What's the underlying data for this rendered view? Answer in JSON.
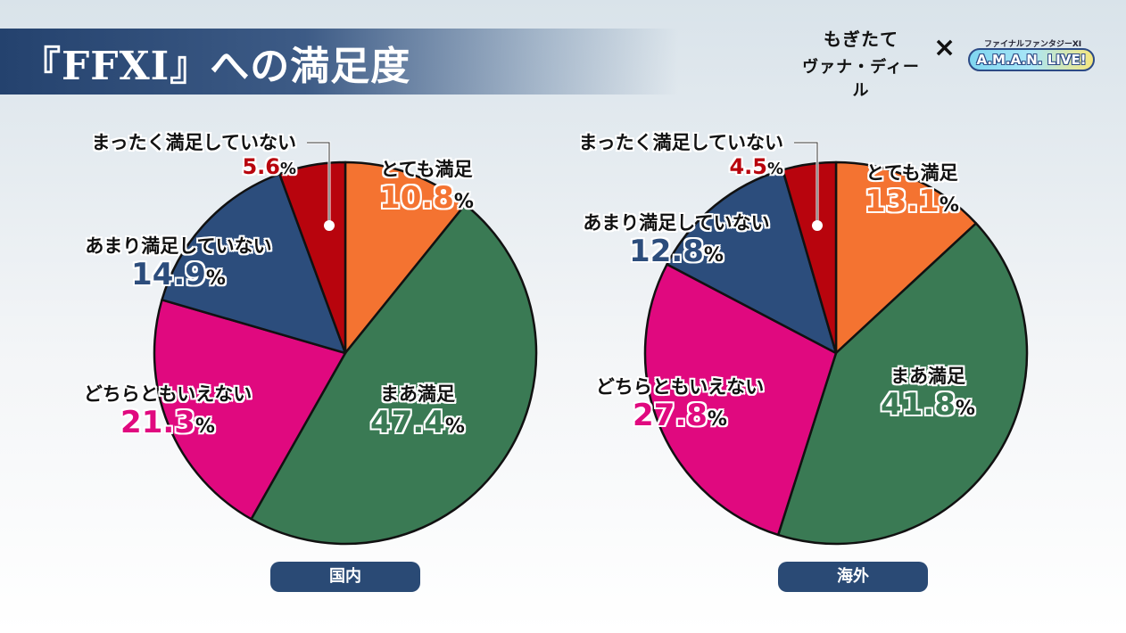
{
  "title": "『FFXI』への満足度",
  "logos": {
    "left_line1": "もぎたて",
    "left_line2": "ヴァナ・ディール",
    "separator": "×",
    "right_sub": "ファイナルファンタジーXI",
    "right_main": "A.M.A.N. LIVE!"
  },
  "colors": {
    "very_satisfied": "#f47331",
    "somewhat_satisfied": "#3a7a54",
    "neutral": "#e0097f",
    "not_very": "#2c4d7c",
    "not_at_all": "#b8040d",
    "region_badge": "#2a4a75"
  },
  "chart_data": [
    {
      "type": "pie",
      "region_label": "国内",
      "categories": [
        "とても満足",
        "まあ満足",
        "どちらともいえない",
        "あまり満足していない",
        "まったく満足していない"
      ],
      "values": [
        10.8,
        47.4,
        21.3,
        14.9,
        5.6
      ],
      "value_labels": [
        "10.8",
        "47.4",
        "21.3",
        "14.9",
        "5.6"
      ],
      "unit": "%"
    },
    {
      "type": "pie",
      "region_label": "海外",
      "categories": [
        "とても満足",
        "まあ満足",
        "どちらともいえない",
        "あまり満足していない",
        "まったく満足していない"
      ],
      "values": [
        13.1,
        41.8,
        27.8,
        12.8,
        4.5
      ],
      "value_labels": [
        "13.1",
        "41.8",
        "27.8",
        "12.8",
        "4.5"
      ],
      "unit": "%"
    }
  ]
}
